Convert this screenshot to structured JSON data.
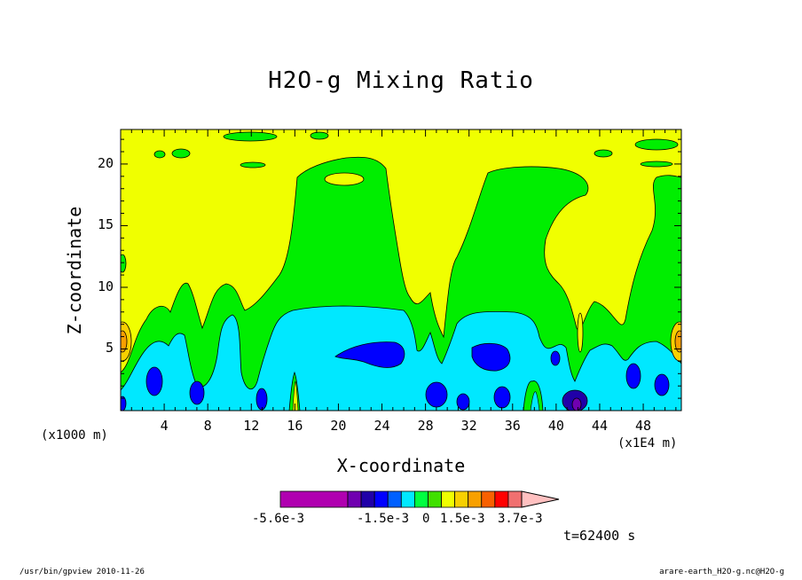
{
  "chart_data": {
    "type": "heatmap",
    "title": "H2O-g Mixing Ratio",
    "xlabel": "X-coordinate",
    "ylabel": "Z-coordinate",
    "x_unit_left": "(x1000 m)",
    "x_unit_right": "(x1E4 m)",
    "xlim": [
      0,
      51.5
    ],
    "ylim": [
      0,
      22.8
    ],
    "x_ticks": [
      4,
      8,
      12,
      16,
      20,
      24,
      28,
      32,
      36,
      40,
      44,
      48
    ],
    "y_ticks": [
      5,
      10,
      15,
      20
    ],
    "colorbar": {
      "colors": [
        "#b000b0",
        "#7000b0",
        "#2000a8",
        "#0000ff",
        "#0060ff",
        "#00e8ff",
        "#00ff40",
        "#40e000",
        "#f0ff00",
        "#f8d000",
        "#f8a000",
        "#f86000",
        "#ff0000",
        "#f07070",
        "#ffc0c0"
      ],
      "labels": [
        "-5.6e-3",
        "-1.5e-3",
        "0",
        "1.5e-3",
        "3.7e-3"
      ]
    },
    "background_level_color": "#f0ff00"
  },
  "timestamp": "t=62400 s",
  "footer_left": "/usr/bin/gpview   2010-11-26",
  "footer_right": "arare-earth_H2O-g.nc@H2O-g"
}
